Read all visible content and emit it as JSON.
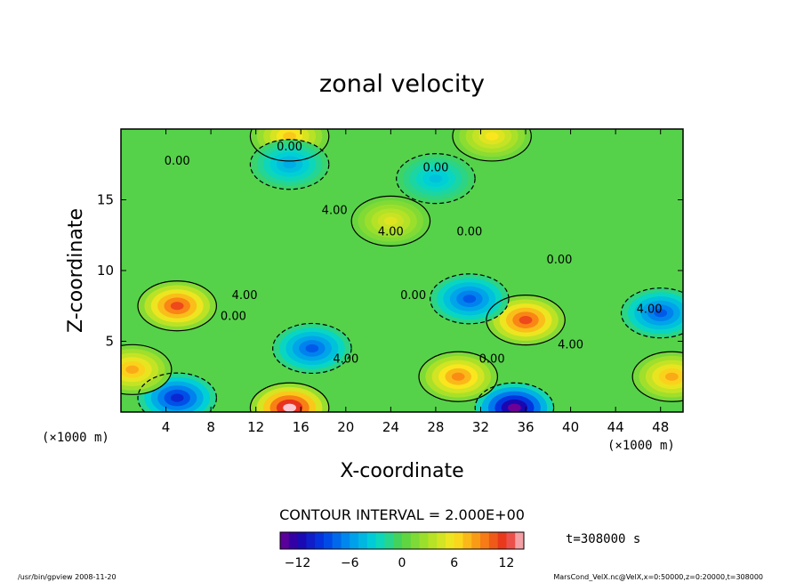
{
  "chart_data": {
    "type": "heatmap",
    "title": "zonal velocity",
    "xlabel": "X-coordinate",
    "ylabel": "Z-coordinate",
    "x_unit": "(×1000 m)",
    "y_unit": "(×1000 m)",
    "xlim": [
      0,
      50
    ],
    "ylim": [
      0,
      20
    ],
    "x_ticks": [
      "4",
      "8",
      "12",
      "16",
      "20",
      "24",
      "28",
      "32",
      "36",
      "40",
      "44",
      "48"
    ],
    "y_ticks": [
      "5",
      "10",
      "15"
    ],
    "contour_interval_text": "CONTOUR INTERVAL = 2.000E+00",
    "time_text": "t=308000 s",
    "colorbar_ticks": [
      "−12",
      "−6",
      "0",
      "6",
      "12"
    ],
    "colorbar_range": [
      -14,
      14
    ],
    "contour_labels": [
      "0.00",
      "0.00",
      "0.00",
      "4.00",
      "4.00",
      "0.00",
      "0.00",
      "4.00",
      "0.00",
      "4.00",
      "0.00",
      "4.00",
      "0.00",
      "4.00"
    ],
    "features": [
      {
        "x": 5,
        "z": 7.5,
        "value": 11,
        "label": "positive cell"
      },
      {
        "x": 36,
        "z": 6.5,
        "value": 11,
        "label": "positive cell"
      },
      {
        "x": 15,
        "z": 0.3,
        "value": 14,
        "label": "surface jet max"
      },
      {
        "x": 35,
        "z": 0.3,
        "value": -14,
        "label": "surface jet min"
      },
      {
        "x": 5,
        "z": 1,
        "value": -10
      },
      {
        "x": 17,
        "z": 4.5,
        "value": -8
      },
      {
        "x": 31,
        "z": 8,
        "value": -8
      },
      {
        "x": 48,
        "z": 7,
        "value": -8
      },
      {
        "x": 24,
        "z": 13.5,
        "value": 5
      },
      {
        "x": 30,
        "z": 2.5,
        "value": 9
      },
      {
        "x": 49,
        "z": 2.5,
        "value": 8
      },
      {
        "x": 1,
        "z": 3,
        "value": 8
      },
      {
        "x": 15,
        "z": 19.5,
        "value": 7
      },
      {
        "x": 33,
        "z": 19.5,
        "value": 6
      },
      {
        "x": 15,
        "z": 17.5,
        "value": -5
      },
      {
        "x": 28,
        "z": 16.5,
        "value": -4
      }
    ]
  },
  "footer": {
    "left": "/usr/bin/gpview  2008-11-20",
    "right": "MarsCond_VelX.nc@VelX,x=0:50000,z=0:20000,t=308000"
  }
}
